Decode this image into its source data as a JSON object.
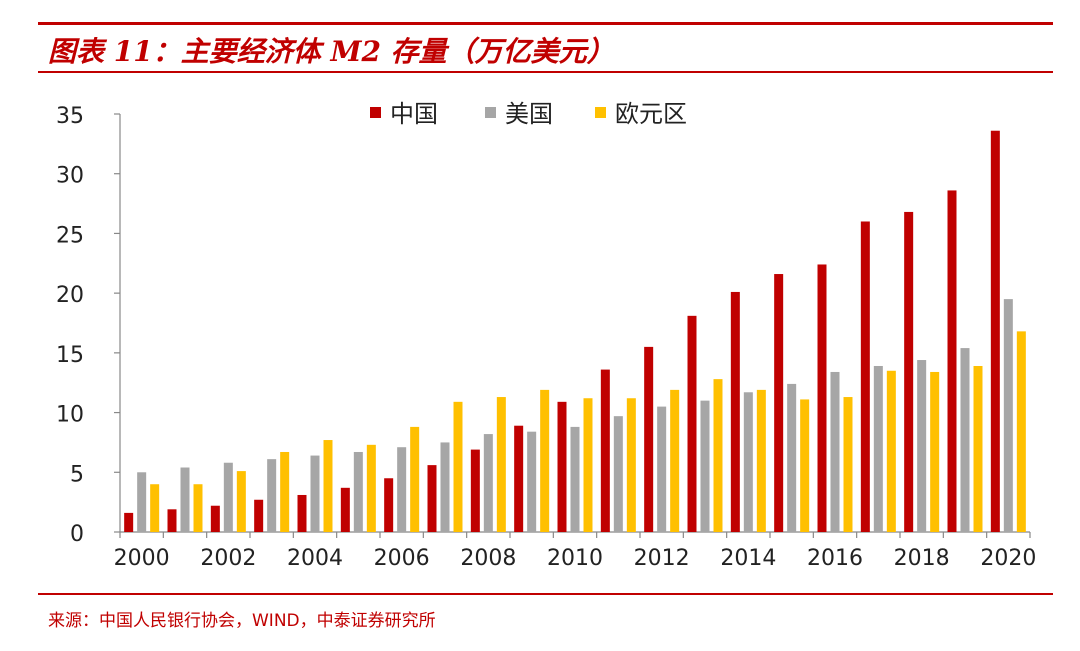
{
  "header": {
    "title": "图表 11：主要经济体 M2 存量（万亿美元）"
  },
  "footer": {
    "source": "来源：中国人民银行协会，WIND，中泰证券研究所"
  },
  "colors": {
    "accent": "#c00000",
    "china": "#c00000",
    "us": "#a6a6a6",
    "euro": "#ffc000"
  },
  "chart_data": {
    "type": "bar",
    "title": "",
    "xlabel": "",
    "ylabel": "",
    "ylim": [
      0,
      35
    ],
    "yticks": [
      0,
      5,
      10,
      15,
      20,
      25,
      30,
      35
    ],
    "categories": [
      "2000",
      "2001",
      "2002",
      "2003",
      "2004",
      "2005",
      "2006",
      "2007",
      "2008",
      "2009",
      "2010",
      "2011",
      "2012",
      "2013",
      "2014",
      "2015",
      "2016",
      "2017",
      "2018",
      "2019",
      "2020"
    ],
    "xtick_labels": [
      "2000",
      "",
      "2002",
      "",
      "2004",
      "",
      "2006",
      "",
      "2008",
      "",
      "2010",
      "",
      "2012",
      "",
      "2014",
      "",
      "2016",
      "",
      "2018",
      "",
      "2020"
    ],
    "legend_position": "top-center",
    "grid": false,
    "series": [
      {
        "name": "中国",
        "color": "#c00000",
        "values": [
          1.6,
          1.9,
          2.2,
          2.7,
          3.1,
          3.7,
          4.5,
          5.6,
          6.9,
          8.9,
          10.9,
          13.6,
          15.5,
          18.1,
          20.1,
          21.6,
          22.4,
          26.0,
          26.8,
          28.6,
          33.6
        ]
      },
      {
        "name": "美国",
        "color": "#a6a6a6",
        "values": [
          5.0,
          5.4,
          5.8,
          6.1,
          6.4,
          6.7,
          7.1,
          7.5,
          8.2,
          8.4,
          8.8,
          9.7,
          10.5,
          11.0,
          11.7,
          12.4,
          13.4,
          13.9,
          14.4,
          15.4,
          19.5
        ]
      },
      {
        "name": "欧元区",
        "color": "#ffc000",
        "values": [
          4.0,
          4.0,
          5.1,
          6.7,
          7.7,
          7.3,
          8.8,
          10.9,
          11.3,
          11.9,
          11.2,
          11.2,
          11.9,
          12.8,
          11.9,
          11.1,
          11.3,
          13.5,
          13.4,
          13.9,
          16.8
        ]
      }
    ]
  }
}
